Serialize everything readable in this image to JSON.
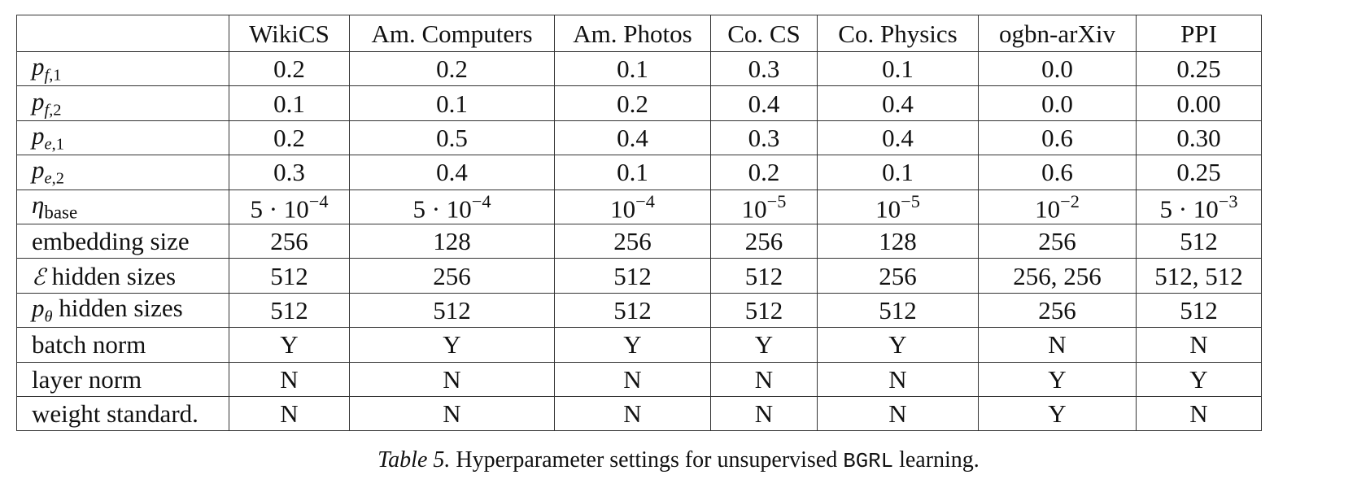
{
  "table": {
    "columns": [
      "WikiCS",
      "Am. Computers",
      "Am. Photos",
      "Co. CS",
      "Co. Physics",
      "ogbn-arXiv",
      "PPI"
    ],
    "rows": {
      "pf1": [
        "0.2",
        "0.2",
        "0.1",
        "0.3",
        "0.1",
        "0.0",
        "0.25"
      ],
      "pf2": [
        "0.1",
        "0.1",
        "0.2",
        "0.4",
        "0.4",
        "0.0",
        "0.00"
      ],
      "pe1": [
        "0.2",
        "0.5",
        "0.4",
        "0.3",
        "0.4",
        "0.6",
        "0.30"
      ],
      "pe2": [
        "0.3",
        "0.4",
        "0.1",
        "0.2",
        "0.1",
        "0.6",
        "0.25"
      ],
      "eta_base": [
        {
          "coef": "5 · ",
          "exp": "−4"
        },
        {
          "coef": "5 · ",
          "exp": "−4"
        },
        {
          "coef": "",
          "exp": "−4"
        },
        {
          "coef": "",
          "exp": "−5"
        },
        {
          "coef": "",
          "exp": "−5"
        },
        {
          "coef": "",
          "exp": "−2"
        },
        {
          "coef": "5 · ",
          "exp": "−3"
        }
      ],
      "embedding_size": [
        "256",
        "128",
        "256",
        "256",
        "128",
        "256",
        "512"
      ],
      "encoder_hidden": [
        "512",
        "256",
        "512",
        "512",
        "256",
        "256, 256",
        "512, 512"
      ],
      "predictor_hidden": [
        "512",
        "512",
        "512",
        "512",
        "512",
        "256",
        "512"
      ],
      "batch_norm": [
        "Y",
        "Y",
        "Y",
        "Y",
        "Y",
        "N",
        "N"
      ],
      "layer_norm": [
        "N",
        "N",
        "N",
        "N",
        "N",
        "Y",
        "Y"
      ],
      "weight_standard": [
        "N",
        "N",
        "N",
        "N",
        "N",
        "Y",
        "N"
      ]
    },
    "row_labels": {
      "p": "p",
      "f": "f",
      "e": "e",
      "one": ",1",
      "two": ",2",
      "eta": "η",
      "base": "base",
      "embedding_size": "embedding size",
      "calE": "ℰ",
      "hidden_sizes": " hidden sizes",
      "theta": "θ",
      "batch_norm": "batch norm",
      "layer_norm": "layer norm",
      "weight_standard": "weight standard."
    },
    "ten": "10"
  },
  "caption": {
    "label": "Table 5.",
    "text_before": " Hyperparameter settings for unsupervised ",
    "method": "BGRL",
    "text_after": " learning."
  }
}
